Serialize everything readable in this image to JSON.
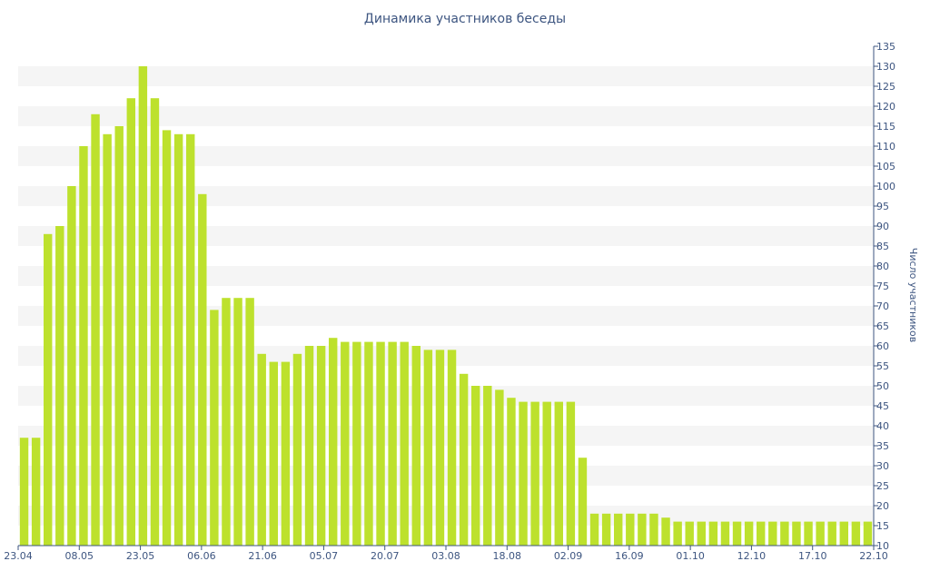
{
  "chart_data": {
    "type": "bar",
    "title": "Динамика участников беседы",
    "xlabel": "",
    "ylabel": "Число участников",
    "ylim": [
      10,
      135
    ],
    "y_ticks": [
      10,
      15,
      20,
      25,
      30,
      35,
      40,
      45,
      50,
      55,
      60,
      65,
      70,
      75,
      80,
      85,
      90,
      95,
      100,
      105,
      110,
      115,
      120,
      125,
      130,
      135
    ],
    "x_ticks": [
      "23.04",
      "08.05",
      "23.05",
      "06.06",
      "21.06",
      "05.07",
      "20.07",
      "03.08",
      "18.08",
      "02.09",
      "16.09",
      "01.10",
      "12.10",
      "17.10",
      "22.10"
    ],
    "values": [
      37,
      37,
      88,
      90,
      100,
      110,
      118,
      113,
      115,
      122,
      130,
      122,
      114,
      113,
      113,
      98,
      69,
      72,
      72,
      72,
      58,
      56,
      56,
      58,
      60,
      60,
      62,
      61,
      61,
      61,
      61,
      61,
      61,
      60,
      59,
      59,
      59,
      53,
      50,
      50,
      49,
      47,
      46,
      46,
      46,
      46,
      46,
      32,
      18,
      18,
      18,
      18,
      18,
      18,
      17,
      16,
      16,
      16,
      16,
      16,
      16,
      16,
      16,
      16,
      16,
      16,
      16,
      16,
      16,
      16,
      16,
      16
    ],
    "bar_color": "#bde12d",
    "stripe_color": "#f5f5f5",
    "axis_color": "#3d5580",
    "grid": "horizontal bands",
    "y_axis_side": "right"
  }
}
